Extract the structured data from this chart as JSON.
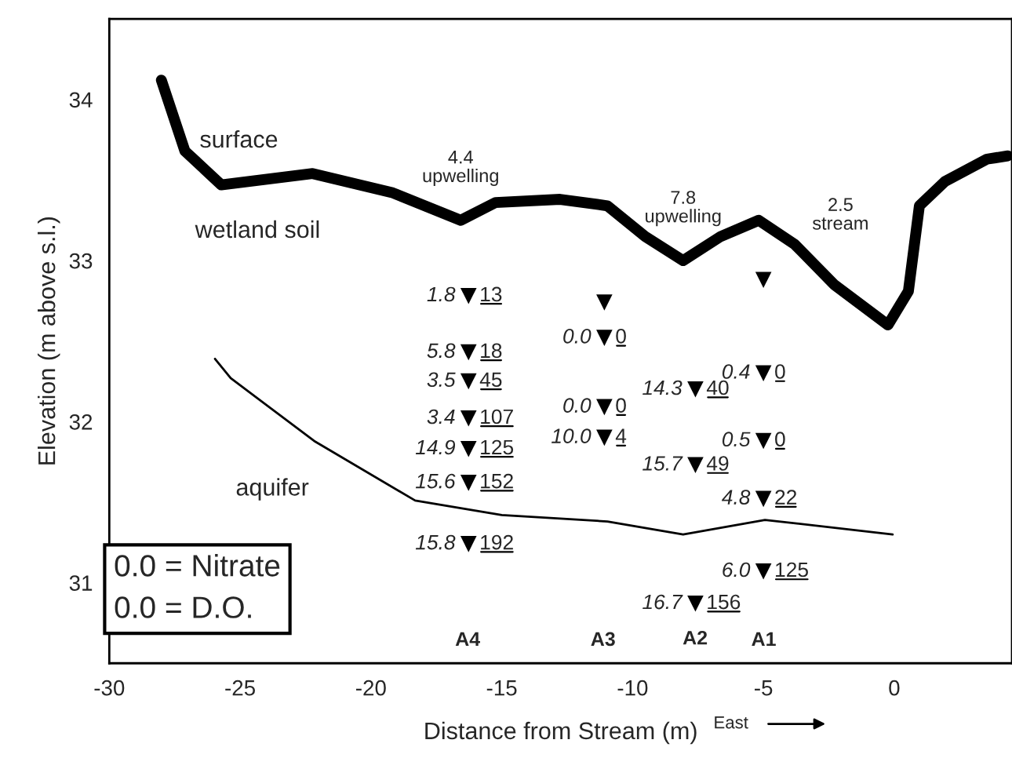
{
  "chart_data": {
    "type": "line",
    "xlabel": "Distance from Stream (m)",
    "ylabel": "Elevation (m above s.l.)",
    "xlim": [
      -30,
      4.5
    ],
    "ylim": [
      30.5,
      34.5
    ],
    "xticks": [
      -30,
      -25,
      -20,
      -15,
      -10,
      -5,
      0
    ],
    "yticks": [
      31,
      32,
      33,
      34
    ],
    "grid": false,
    "series": [
      {
        "color": "#000000",
        "x": [
          -28.01,
          -27.11,
          -25.72,
          -22.23,
          -19.16,
          -16.57,
          -15.24,
          -12.77,
          -10.96,
          -9.52,
          -8.07,
          -6.63,
          -5.18,
          -3.8,
          -2.29,
          -0.24,
          0.54,
          0.96,
          1.93,
          3.55,
          4.34
        ],
        "values": [
          34.12,
          33.68,
          33.47,
          33.54,
          33.42,
          33.25,
          33.36,
          33.38,
          33.34,
          33.15,
          33.0,
          33.15,
          33.25,
          33.1,
          32.85,
          32.6,
          32.81,
          33.34,
          33.49,
          33.63,
          33.65
        ]
      },
      {
        "color": "#000000",
        "x": [
          -25.96,
          -25.36,
          -22.17,
          -18.31,
          -15.0,
          -10.96,
          -8.07,
          -4.94,
          -0.06
        ],
        "values": [
          32.39,
          32.27,
          31.88,
          31.51,
          31.42,
          31.38,
          31.3,
          31.39,
          31.3
        ]
      },
      {
        "type": "scatter",
        "marker": "triangle",
        "color": "#000000",
        "x": [
          -16.27,
          -16.27,
          -16.27,
          -16.27,
          -16.27,
          -16.27,
          -16.27,
          -11.08,
          -11.08,
          -11.08,
          -11.08,
          -7.6,
          -7.6,
          -7.6,
          -5.0,
          -5.0,
          -5.0,
          -5.0,
          -5.0
        ],
        "values": [
          32.78,
          32.43,
          32.25,
          32.02,
          31.83,
          31.62,
          31.24,
          32.74,
          32.52,
          32.09,
          31.9,
          32.2,
          31.73,
          30.87,
          32.88,
          32.3,
          31.88,
          31.52,
          31.07
        ]
      }
    ],
    "annotations": [
      "0.0 = Nitrate",
      "0.0 = D.O.",
      "East",
      "surface",
      "wetland soil",
      "aquifer",
      "2.5\nstream",
      "A4",
      "A3",
      "A2",
      "A1",
      {
        "text": "4.4\nupwelling",
        "x": -16.57,
        "y": 33.25
      },
      {
        "text": "7.8\nupwelling",
        "x": -8.07,
        "y": 33.0
      },
      {
        "text": "1.8",
        "x": -16.27,
        "y": 32.78
      },
      {
        "text": "13",
        "x": -16.27,
        "y": 32.78
      },
      {
        "text": "5.8",
        "x": -16.27,
        "y": 32.43
      },
      {
        "text": "18",
        "x": -16.27,
        "y": 32.43
      },
      {
        "text": "3.5",
        "x": -16.27,
        "y": 32.25
      },
      {
        "text": "45",
        "x": -16.27,
        "y": 32.25
      },
      {
        "text": "3.4",
        "x": -16.27,
        "y": 32.02
      },
      {
        "text": "107",
        "x": -16.27,
        "y": 32.02
      },
      {
        "text": "14.9",
        "x": -16.27,
        "y": 31.83
      },
      {
        "text": "125",
        "x": -16.27,
        "y": 31.83
      },
      {
        "text": "15.6",
        "x": -16.27,
        "y": 31.62
      },
      {
        "text": "152",
        "x": -16.27,
        "y": 31.62
      },
      {
        "text": "15.8",
        "x": -16.27,
        "y": 31.24
      },
      {
        "text": "192",
        "x": -16.27,
        "y": 31.24
      },
      {
        "text": "0.0",
        "x": -11.08,
        "y": 32.52
      },
      {
        "text": "0",
        "x": -11.08,
        "y": 32.52
      },
      {
        "text": "0.0",
        "x": -11.08,
        "y": 32.09
      },
      {
        "text": "0",
        "x": -11.08,
        "y": 32.09
      },
      {
        "text": "10.0",
        "x": -11.08,
        "y": 31.9
      },
      {
        "text": "4",
        "x": -11.08,
        "y": 31.9
      },
      {
        "text": "14.3",
        "x": -7.6,
        "y": 32.2
      },
      {
        "text": "40",
        "x": -7.6,
        "y": 32.2
      },
      {
        "text": "15.7",
        "x": -7.6,
        "y": 31.73
      },
      {
        "text": "49",
        "x": -7.6,
        "y": 31.73
      },
      {
        "text": "16.7",
        "x": -7.6,
        "y": 30.87
      },
      {
        "text": "156",
        "x": -7.6,
        "y": 30.87
      },
      {
        "text": "0.4",
        "x": -5.0,
        "y": 32.3
      },
      {
        "text": "0",
        "x": -5.0,
        "y": 32.3
      },
      {
        "text": "0.5",
        "x": -5.0,
        "y": 31.88
      },
      {
        "text": "0",
        "x": -5.0,
        "y": 31.88
      },
      {
        "text": "4.8",
        "x": -5.0,
        "y": 31.52
      },
      {
        "text": "22",
        "x": -5.0,
        "y": 31.52
      },
      {
        "text": "6.0",
        "x": -5.0,
        "y": 31.07
      },
      {
        "text": "125",
        "x": -5.0,
        "y": 31.07
      }
    ]
  }
}
